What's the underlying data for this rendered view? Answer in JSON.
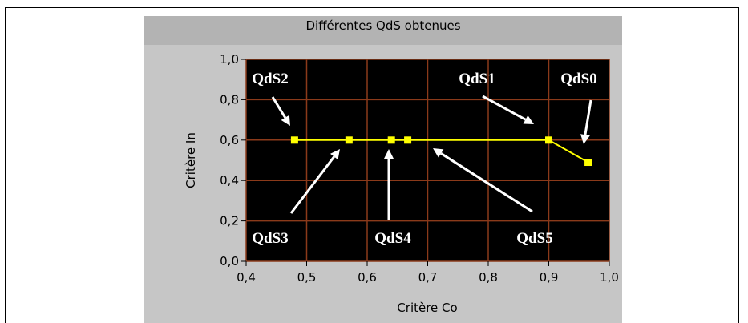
{
  "colors": {
    "plot_bg": "#000000",
    "grid": "#8b3a1a",
    "line": "#ffff00",
    "marker": "#ffff00",
    "annotation": "#ffffff",
    "panel_bg": "#c6c6c6",
    "title_bar": "#b3b3b3"
  },
  "chart_data": {
    "type": "line",
    "title": "Différentes QdS obtenues",
    "xlabel": "Critère Co",
    "ylabel": "Critère In",
    "xlim": [
      0.4,
      1.0
    ],
    "ylim": [
      0.0,
      1.0
    ],
    "xticks": [
      "0,4",
      "0,5",
      "0,6",
      "0,7",
      "0,8",
      "0,9",
      "1,0"
    ],
    "yticks": [
      "0,0",
      "0,2",
      "0,4",
      "0,6",
      "0,8",
      "1,0"
    ],
    "grid": true,
    "points": [
      {
        "x": 0.48,
        "y": 0.6
      },
      {
        "x": 0.57,
        "y": 0.6
      },
      {
        "x": 0.64,
        "y": 0.6
      },
      {
        "x": 0.667,
        "y": 0.6
      },
      {
        "x": 0.9,
        "y": 0.6
      },
      {
        "x": 0.965,
        "y": 0.49
      }
    ],
    "annotations": [
      {
        "label": "QdS0",
        "x": 0.965,
        "y": 0.49
      },
      {
        "label": "QdS1",
        "x": 0.9,
        "y": 0.6
      },
      {
        "label": "QdS2",
        "x": 0.48,
        "y": 0.6
      },
      {
        "label": "QdS3",
        "x": 0.57,
        "y": 0.6
      },
      {
        "label": "QdS4",
        "x": 0.64,
        "y": 0.6
      },
      {
        "label": "QdS5",
        "x": 0.667,
        "y": 0.6
      }
    ]
  }
}
